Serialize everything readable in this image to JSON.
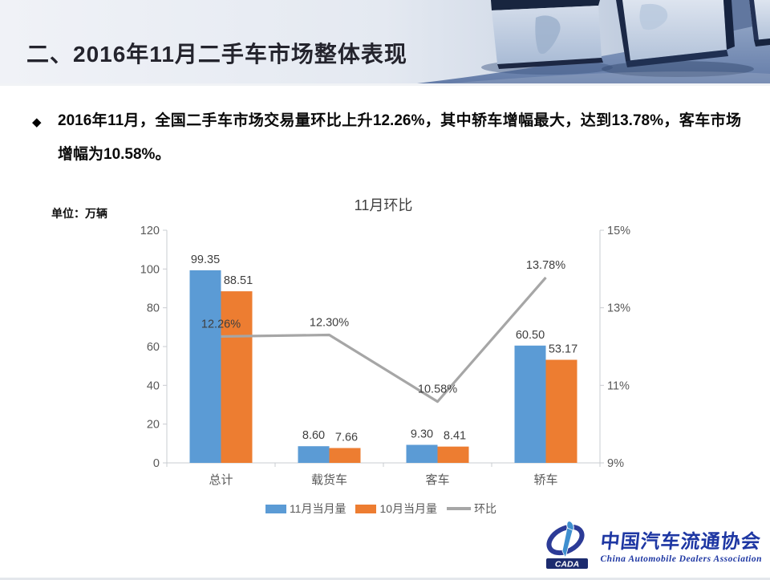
{
  "slide": {
    "title": "二、2016年11月二手车市场整体表现"
  },
  "bullet": {
    "marker": "◆",
    "text": "2016年11月，全国二手车市场交易量环比上升12.26%，其中轿车增幅最大，达到13.78%，客车市场增幅为10.58%。"
  },
  "chart": {
    "unit_label": "单位：万辆"
  },
  "chart_data": {
    "type": "bar",
    "title": "11月环比",
    "categories": [
      "总计",
      "载货车",
      "客车",
      "轿车"
    ],
    "series": [
      {
        "name": "11月当月量",
        "type": "bar",
        "color": "#5B9BD5",
        "axis": "left",
        "values": [
          99.35,
          8.6,
          9.3,
          60.5
        ],
        "labels": [
          "99.35",
          "8.60",
          "9.30",
          "60.50"
        ]
      },
      {
        "name": "10月当月量",
        "type": "bar",
        "color": "#ED7D31",
        "axis": "left",
        "values": [
          88.51,
          7.66,
          8.41,
          53.17
        ],
        "labels": [
          "88.51",
          "7.66",
          "8.41",
          "53.17"
        ]
      },
      {
        "name": "环比",
        "type": "line",
        "color": "#A6A6A6",
        "axis": "right",
        "values": [
          12.26,
          12.3,
          10.58,
          13.78
        ],
        "labels": [
          "12.26%",
          "12.30%",
          "10.58%",
          "13.78%"
        ]
      }
    ],
    "left_axis": {
      "min": 0,
      "max": 120,
      "step": 20,
      "labels": [
        "0",
        "20",
        "40",
        "60",
        "80",
        "100",
        "120"
      ]
    },
    "right_axis": {
      "min": 9,
      "max": 15,
      "step": 2,
      "labels": [
        "9%",
        "11%",
        "13%",
        "15%"
      ]
    },
    "legend_position": "bottom",
    "grid": false,
    "label_color": "#3f3f3f",
    "tick_color": "#595959",
    "axis_line_color": "#c9ccd1"
  },
  "footer_logo": {
    "abbr": "CADA",
    "name_cn": "中国汽车流通协会",
    "name_en": "China Automobile Dealers Association",
    "brand_color": "#1e37a3"
  }
}
